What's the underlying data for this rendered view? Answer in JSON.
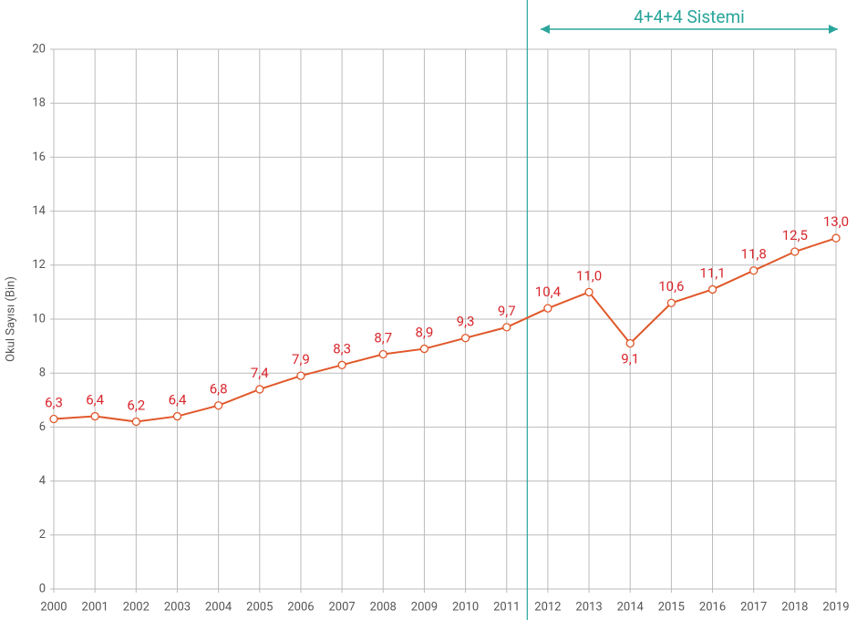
{
  "chart_data": {
    "type": "line",
    "annotation": "4+4+4 Sistemi",
    "y_label": "Okul Sayısı (Bin)",
    "categories": [
      "2000",
      "2001",
      "2002",
      "2003",
      "2004",
      "2005",
      "2006",
      "2007",
      "2008",
      "2009",
      "2010",
      "2011",
      "2012",
      "2013",
      "2014",
      "2015",
      "2016",
      "2017",
      "2018",
      "2019"
    ],
    "series": [
      {
        "name": "Okul Sayısı",
        "color": "#e0582a",
        "values": [
          6.3,
          6.4,
          6.2,
          6.4,
          6.8,
          7.4,
          7.9,
          8.3,
          8.7,
          8.9,
          9.3,
          9.7,
          10.4,
          11.0,
          9.1,
          10.6,
          11.1,
          11.8,
          12.5,
          13.0
        ],
        "value_labels": [
          "6,3",
          "6,4",
          "6,2",
          "6,4",
          "6,8",
          "7,4",
          "7,9",
          "8,3",
          "8,7",
          "8,9",
          "9,3",
          "9,7",
          "10,4",
          "11,0",
          "9,1",
          "10,6",
          "11,1",
          "11,8",
          "12,5",
          "13,0"
        ]
      }
    ],
    "ylim": [
      0,
      20
    ],
    "yticks": [
      0,
      2,
      4,
      6,
      8,
      10,
      12,
      14,
      16,
      18,
      20
    ],
    "grid": true
  }
}
